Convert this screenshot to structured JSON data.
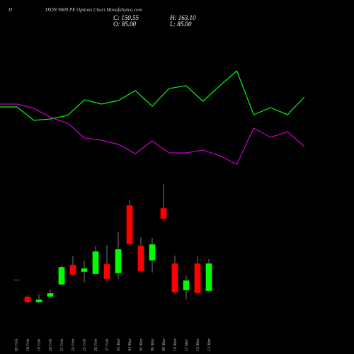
{
  "header": {
    "prefix": "D",
    "title": "IXON 9400 PE Options  Chart MunafaSutra.com",
    "close": "C: 150.55",
    "high": "H: 163.10",
    "open": "O: 85.00",
    "low": "L: 85.00"
  },
  "chart_data": [
    {
      "type": "line",
      "ylim": [
        0,
        180
      ],
      "series": [
        {
          "color": "#00ff00",
          "values": [
            109,
            109,
            90,
            92,
            97,
            119,
            113,
            118,
            132,
            110,
            135,
            139,
            117,
            139,
            160,
            98,
            108,
            98,
            123
          ]
        },
        {
          "color": "#cc00cc",
          "values": [
            113,
            113,
            107,
            94,
            86,
            65,
            62,
            56,
            43,
            61,
            44,
            44,
            48,
            40,
            28,
            79,
            66,
            74,
            53
          ]
        }
      ]
    },
    {
      "type": "candlestick",
      "ylim": [
        0,
        220
      ],
      "up_color": "#00ff00",
      "down_color": "#ff0000",
      "categories": [
        "05 Feb",
        "18 Feb",
        "19 Feb",
        "20 Feb",
        "21 Feb",
        "24 Feb",
        "25 Feb",
        "26 Feb",
        "27 Feb",
        "03 Mar",
        "04 Mar",
        "05 Mar",
        "06 Mar",
        "09 Mar",
        "10 Mar",
        "11 Mar",
        "12 Mar",
        "13 Mar"
      ],
      "open": [
        65,
        41,
        33,
        41,
        58,
        86,
        76,
        73,
        87,
        74,
        170,
        113,
        92,
        166,
        88,
        50,
        88,
        49
      ],
      "high": [
        65,
        43,
        44,
        51,
        86,
        98,
        92,
        112,
        114,
        132,
        178,
        125,
        124,
        200,
        99,
        71,
        99,
        94
      ],
      "low": [
        65,
        32,
        32,
        40,
        57,
        70,
        61,
        72,
        62,
        66,
        113,
        75,
        75,
        148,
        45,
        37,
        44,
        48
      ],
      "close": [
        65,
        33,
        37,
        46,
        83,
        72,
        81,
        105,
        66,
        108,
        115,
        77,
        115,
        151,
        47,
        64,
        46,
        88
      ]
    }
  ]
}
